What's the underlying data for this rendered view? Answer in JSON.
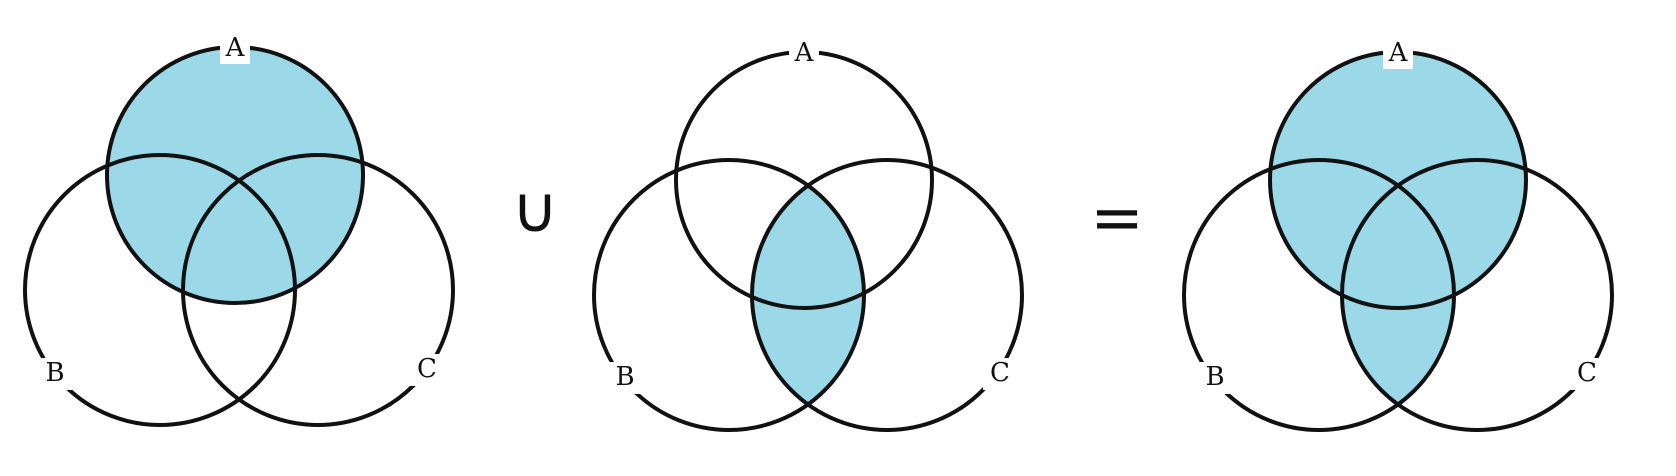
{
  "colors": {
    "shade": "#9bd8e8",
    "outline": "#111111",
    "background": "#ffffff"
  },
  "diagrams": [
    {
      "name": "left",
      "labels": {
        "a": "A",
        "b": "B",
        "c": "C"
      },
      "shaded": [
        "A"
      ]
    },
    {
      "name": "middle",
      "labels": {
        "a": "A",
        "b": "B",
        "c": "C"
      },
      "shaded": [
        "B ∩ C"
      ]
    },
    {
      "name": "right",
      "labels": {
        "a": "A",
        "b": "B",
        "c": "C"
      },
      "shaded": [
        "A",
        "B ∩ C"
      ]
    }
  ],
  "operators": {
    "union": "∪",
    "equals": "="
  }
}
